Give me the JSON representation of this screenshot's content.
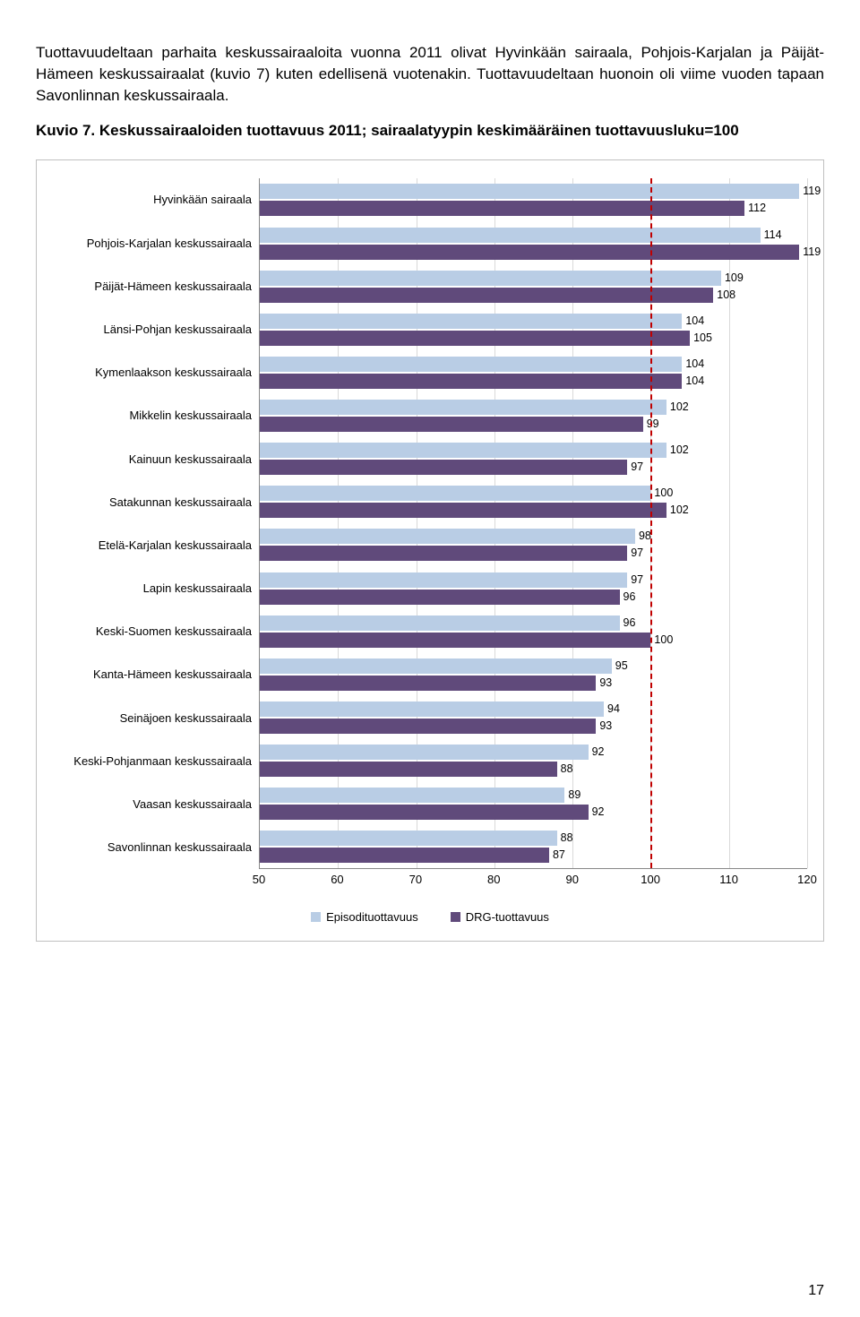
{
  "text": {
    "paragraph": "Tuottavuudeltaan parhaita keskussairaaloita vuonna 2011 olivat Hyvinkään sairaala, Pohjois-Karjalan ja Päijät-Hämeen keskussairaalat (kuvio 7) kuten edellisenä vuotenakin. Tuottavuudeltaan huonoin oli viime vuoden tapaan Savonlinnan keskussairaala.",
    "heading_prefix": "Kuvio 7.",
    "heading_rest": " Keskussairaaloiden tuottavuus 2011; sairaalatyypin keskimääräinen tuottavuusluku=100",
    "page_number": "17"
  },
  "chart": {
    "type": "bar",
    "xlim": [
      50,
      120
    ],
    "x_ticks": [
      50,
      60,
      70,
      80,
      90,
      100,
      110,
      120
    ],
    "reference_line": 100,
    "reference_color": "#c00000",
    "grid_color": "#d9d9d9",
    "background": "#ffffff",
    "series": [
      {
        "name": "Episodituottavuus",
        "color": "#b9cde5"
      },
      {
        "name": "DRG-tuottavuus",
        "color": "#604a7b"
      }
    ],
    "categories": [
      {
        "label": "Hyvinkään sairaala",
        "values": [
          119,
          112
        ]
      },
      {
        "label": "Pohjois-Karjalan keskussairaala",
        "values": [
          114,
          119
        ]
      },
      {
        "label": "Päijät-Hämeen keskussairaala",
        "values": [
          109,
          108
        ]
      },
      {
        "label": "Länsi-Pohjan keskussairaala",
        "values": [
          104,
          105
        ]
      },
      {
        "label": "Kymenlaakson keskussairaala",
        "values": [
          104,
          104
        ]
      },
      {
        "label": "Mikkelin keskussairaala",
        "values": [
          102,
          99
        ]
      },
      {
        "label": "Kainuun keskussairaala",
        "values": [
          102,
          97
        ]
      },
      {
        "label": "Satakunnan keskussairaala",
        "values": [
          100,
          102
        ]
      },
      {
        "label": "Etelä-Karjalan keskussairaala",
        "values": [
          98,
          97
        ]
      },
      {
        "label": "Lapin keskussairaala",
        "values": [
          97,
          96
        ]
      },
      {
        "label": "Keski-Suomen keskussairaala",
        "values": [
          96,
          100
        ]
      },
      {
        "label": "Kanta-Hämeen keskussairaala",
        "values": [
          95,
          93
        ]
      },
      {
        "label": "Seinäjoen keskussairaala",
        "values": [
          94,
          93
        ]
      },
      {
        "label": "Keski-Pohjanmaan keskussairaala",
        "values": [
          92,
          88
        ]
      },
      {
        "label": "Vaasan keskussairaala",
        "values": [
          89,
          92
        ]
      },
      {
        "label": "Savonlinnan keskussairaala",
        "values": [
          88,
          87
        ]
      }
    ]
  }
}
